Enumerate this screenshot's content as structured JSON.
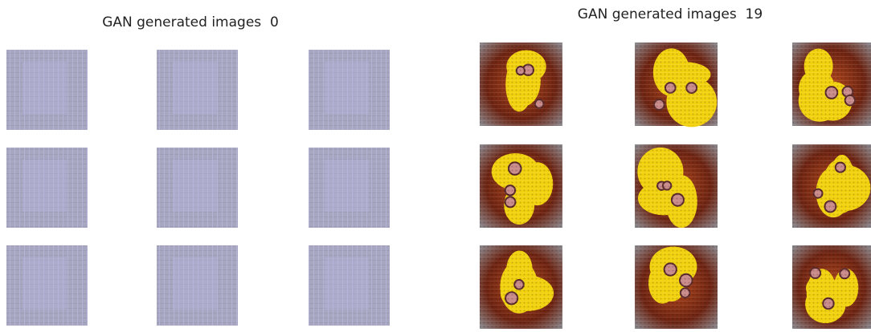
{
  "panels": [
    {
      "title": "GAN generated images  0"
    },
    {
      "title": "GAN generated images  19"
    }
  ]
}
